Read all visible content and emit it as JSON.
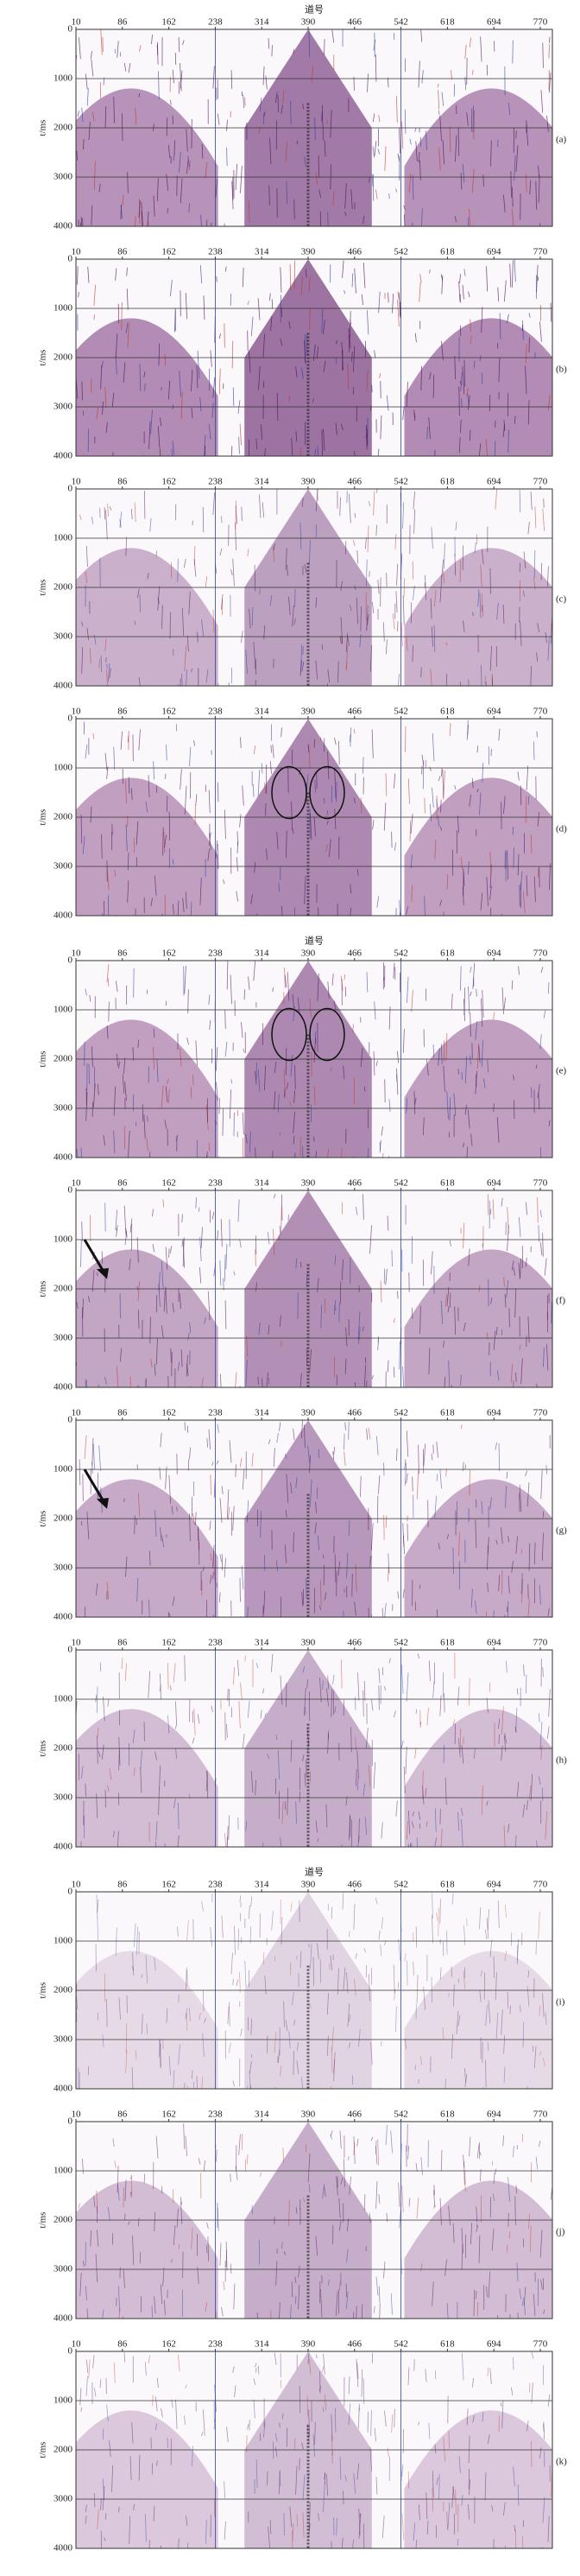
{
  "figure": {
    "x_axis_title": "道号",
    "y_axis_title": "t/ms",
    "x_ticks": [
      10,
      86,
      162,
      238,
      314,
      390,
      466,
      542,
      618,
      694,
      770
    ],
    "y_ticks": [
      0,
      1000,
      2000,
      3000,
      4000
    ],
    "panels": [
      {
        "label": "(a)",
        "show_x_title": true
      },
      {
        "label": "(b)",
        "show_x_title": false
      },
      {
        "label": "(c)",
        "show_x_title": false
      },
      {
        "label": "(d)",
        "show_x_title": false
      },
      {
        "label": "(e)",
        "show_x_title": true
      },
      {
        "label": "(f)",
        "show_x_title": false
      },
      {
        "label": "(g)",
        "show_x_title": false
      },
      {
        "label": "(h)",
        "show_x_title": false
      },
      {
        "label": "(i)",
        "show_x_title": true
      },
      {
        "label": "(j)",
        "show_x_title": false
      },
      {
        "label": "(k)",
        "show_x_title": false
      }
    ]
  }
}
